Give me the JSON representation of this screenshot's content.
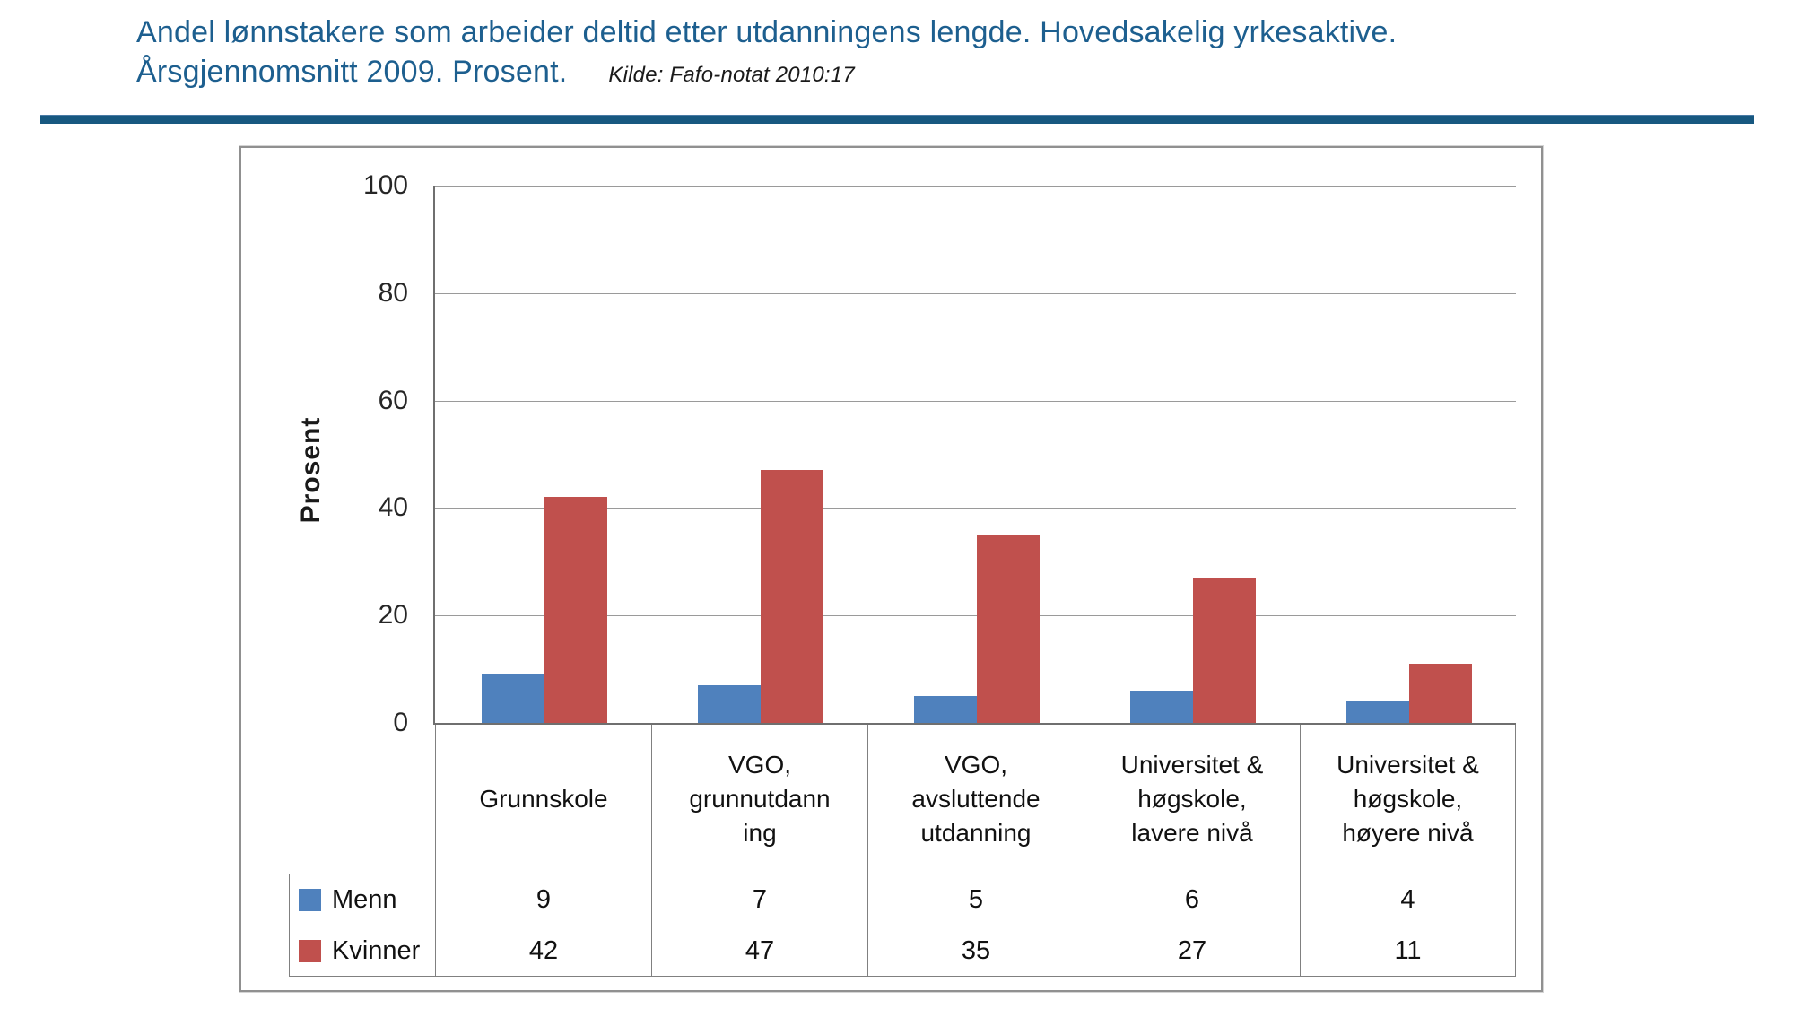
{
  "header": {
    "title_line1": "Andel lønnstakere som arbeider deltid etter utdanningens lengde. Hovedsakelig yrkesaktive.",
    "title_line2": "Årsgjennomsnitt 2009. Prosent.",
    "source": "Kilde: Fafo-notat 2010:17"
  },
  "colors": {
    "title_blue": "#1D5F8F",
    "rule_blue": "#175880",
    "menn_blue": "#4F81BD",
    "kvinner_red": "#C0504D",
    "gridline_gray": "#9A9A9A",
    "axis_gray": "#6F6F6F",
    "table_border_gray": "#808080"
  },
  "chart_data": {
    "type": "bar",
    "title": "Andel lønnstakere som arbeider deltid etter utdanningens lengde. Hovedsakelig yrkesaktive. Årsgjennomsnitt 2009. Prosent.",
    "source": "Kilde: Fafo-notat 2010:17",
    "xlabel": "",
    "ylabel": "Prosent",
    "ylim": [
      0,
      100
    ],
    "yticks": [
      0,
      20,
      40,
      60,
      80,
      100
    ],
    "grid": true,
    "legend_position": "left of data-table rows",
    "categories": [
      "Grunnskole",
      "VGO, grunnutdanning",
      "VGO, avsluttende utdanning",
      "Universitet & høgskole, lavere nivå",
      "Universitet & høgskole, høyere nivå"
    ],
    "category_display_lines": [
      [
        "Grunnskole"
      ],
      [
        "VGO,",
        "grunnutdann",
        "ing"
      ],
      [
        "VGO,",
        "avsluttende",
        "utdanning"
      ],
      [
        "Universitet &",
        "høgskole,",
        "lavere nivå"
      ],
      [
        "Universitet &",
        "høgskole,",
        "høyere nivå"
      ]
    ],
    "series": [
      {
        "name": "Menn",
        "color": "#4F81BD",
        "values": [
          9,
          7,
          5,
          6,
          4
        ]
      },
      {
        "name": "Kvinner",
        "color": "#C0504D",
        "values": [
          42,
          47,
          35,
          27,
          11
        ]
      }
    ]
  }
}
